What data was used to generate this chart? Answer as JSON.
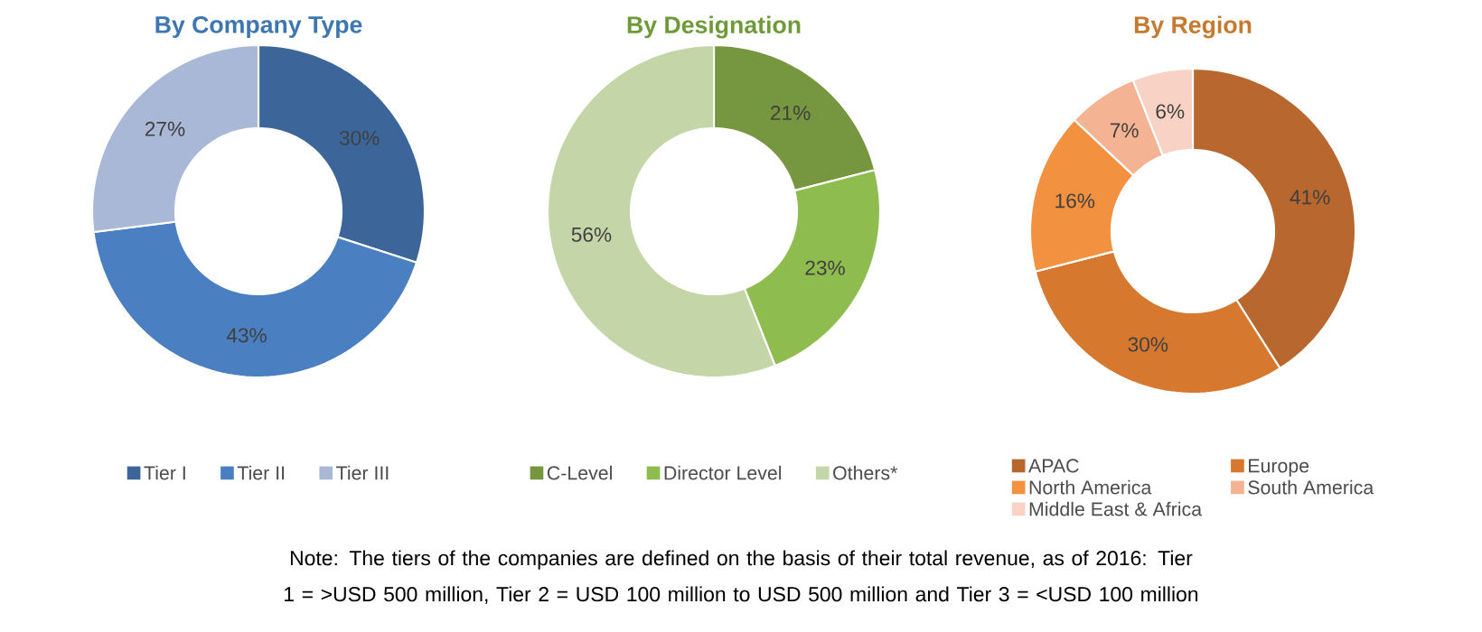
{
  "chart_data": [
    {
      "type": "donut",
      "title": "By Company Type",
      "categories": [
        "Tier I",
        "Tier II",
        "Tier III"
      ],
      "values": [
        30,
        43,
        27
      ],
      "value_labels": [
        "30%",
        "43%",
        "27%"
      ],
      "colors": [
        "#3c6699",
        "#4a7fc1",
        "#a9b8d6"
      ],
      "legend": "bottom",
      "annotations": [
        "Note: The tiers of the companies are defined on the basis of their total revenue, as of 2016: Tier 1 = >USD 500 million, Tier 2 = USD 100 million to USD 500 million and Tier 3 = <USD 100 million"
      ]
    },
    {
      "type": "donut",
      "title": "By Designation",
      "categories": [
        "C-Level",
        "Director Level",
        "Others*"
      ],
      "values": [
        21,
        23,
        56
      ],
      "value_labels": [
        "21%",
        "23%",
        "56%"
      ],
      "colors": [
        "#76973f",
        "#8fbc4e",
        "#c4d6a8"
      ],
      "legend": "bottom"
    },
    {
      "type": "donut",
      "title": "By Region",
      "categories": [
        "APAC",
        "Europe",
        "North America",
        "South America",
        "Middle East & Africa"
      ],
      "values": [
        41,
        30,
        16,
        7,
        6
      ],
      "value_labels": [
        "41%",
        "30%",
        "16%",
        "7%",
        "6%"
      ],
      "colors": [
        "#b8672e",
        "#d7782f",
        "#f29140",
        "#f4b393",
        "#f8d2c4"
      ],
      "legend": "bottom"
    }
  ]
}
